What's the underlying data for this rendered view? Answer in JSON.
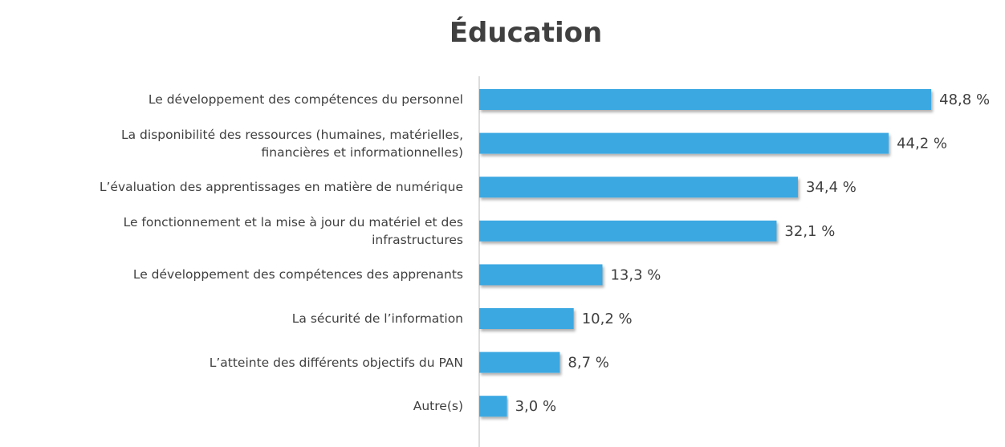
{
  "chart_data": {
    "type": "barh",
    "title": "Éducation",
    "categories": [
      "Le développement des compétences du personnel",
      "La disponibilité des ressources (humaines, matérielles,\nfinancières et informationnelles)",
      "L’évaluation des apprentissages en matière de numérique",
      "Le fonctionnement et la mise à jour du matériel et des\ninfrastructures",
      "Le développement des compétences des apprenants",
      "La sécurité de l’information",
      "L’atteinte des différents objectifs du PAN",
      "Autre(s)"
    ],
    "values": [
      48.8,
      44.2,
      34.4,
      32.1,
      13.3,
      10.2,
      8.7,
      3.0
    ],
    "value_labels": [
      "48,8 %",
      "44,2 %",
      "34,4 %",
      "32,1 %",
      "13,3 %",
      "10,2 %",
      "8,7 %",
      "3,0 %"
    ],
    "color": "#3aa8e2",
    "xlim": [
      0,
      50
    ]
  }
}
